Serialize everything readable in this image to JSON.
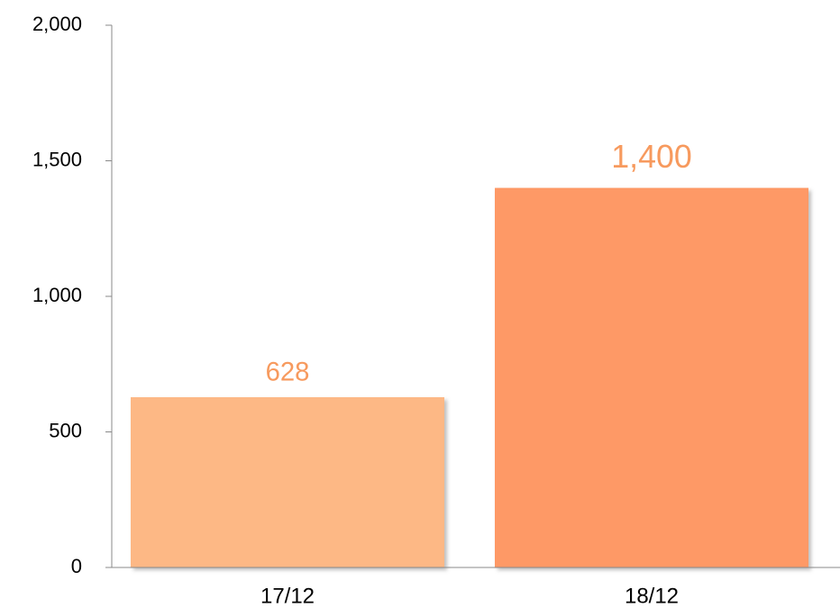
{
  "chart_data": {
    "type": "bar",
    "categories": [
      "17/12",
      "18/12"
    ],
    "values": [
      628,
      1400
    ],
    "value_labels": [
      "628",
      "1,400"
    ],
    "colors": [
      "#fdb885",
      "#fe9966"
    ],
    "ylim": [
      0,
      2000
    ],
    "yticks": [
      0,
      500,
      {
        "value": 1000,
        "label": "1,000"
      },
      {
        "value": 1500,
        "label": "1,500"
      },
      {
        "value": 2000,
        "label": "2,000"
      }
    ],
    "grid": false
  }
}
